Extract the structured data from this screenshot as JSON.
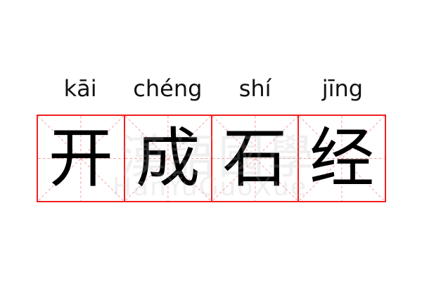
{
  "words": [
    {
      "pinyin": "kāi",
      "hanzi": "开"
    },
    {
      "pinyin": "chéng",
      "hanzi": "成"
    },
    {
      "pinyin": "shí",
      "hanzi": "石"
    },
    {
      "pinyin": "jīng",
      "hanzi": "经"
    }
  ],
  "watermark": {
    "chinese": "漢語國學",
    "latin": "HanYuGuoXue"
  },
  "colors": {
    "grid_border": "#f02020",
    "guide_lines": "#f6a0a0",
    "text": "#000000"
  }
}
